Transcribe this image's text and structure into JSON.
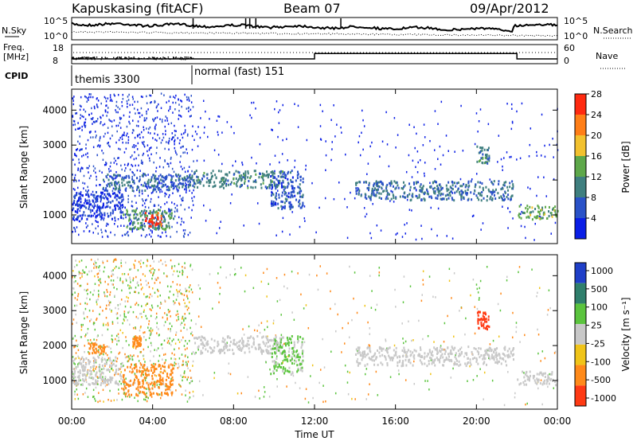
{
  "header": {
    "station": "Kapuskasing (fitACF)",
    "beam": "Beam 07",
    "date": "09/Apr/2012"
  },
  "summary_panels": {
    "nsky_label": "N.Sky",
    "nsearch_label": "N.Search",
    "freq_label_1": "Freq.",
    "freq_label_2": "[MHz]",
    "nave_label": "Nave",
    "cpid_label": "CPID",
    "noise_ticks": [
      "10^5",
      "10^0"
    ],
    "freq_ticks": [
      "18",
      "8"
    ],
    "nave_ticks": [
      "60",
      "0"
    ],
    "modes": [
      {
        "label": "themis 3300",
        "start_hour": 0.0,
        "end_hour": 6.0
      },
      {
        "label": "normal (fast) 151",
        "start_hour": 6.0,
        "end_hour": 24.0
      }
    ],
    "nave_steps": [
      {
        "start_hour": 0.0,
        "end_hour": 12.0,
        "value": 12
      },
      {
        "start_hour": 12.0,
        "end_hour": 22.0,
        "value": 32
      },
      {
        "start_hour": 22.0,
        "end_hour": 24.0,
        "value": 12
      }
    ]
  },
  "power_colorbar": {
    "label": "Power [dB]",
    "ticks": [
      "4",
      "8",
      "12",
      "16",
      "20",
      "24",
      "28"
    ],
    "colors": [
      "#0a1ee6",
      "#2a52c8",
      "#3f7f7f",
      "#5ea84a",
      "#f2c12e",
      "#ff7e17",
      "#ff2a10"
    ]
  },
  "velocity_colorbar": {
    "label": "Velocity [m s⁻¹]",
    "ticks": [
      "1000",
      "500",
      "100",
      "25",
      "-25",
      "-100",
      "-500",
      "-1000"
    ],
    "colors": [
      "#1f3fc8",
      "#2f7f6c",
      "#5bc43e",
      "#c8c8c8",
      "#f0c419",
      "#ff8a1a",
      "#ff3a14"
    ]
  },
  "chart_data": [
    {
      "type": "heatmap",
      "title": "",
      "xlabel": "",
      "ylabel": "Slant Range [km]",
      "xlim": [
        0,
        24
      ],
      "ylim": [
        180,
        4600
      ],
      "y_ticks": [
        1000,
        2000,
        3000,
        4000
      ],
      "quantity": "Power [dB]",
      "echo_regions": [
        {
          "t0": 0.0,
          "t1": 2.5,
          "r0": 900,
          "r1": 1700,
          "value": 6
        },
        {
          "t0": 1.5,
          "t1": 6.0,
          "r0": 1700,
          "r1": 2200,
          "value": 10
        },
        {
          "t0": 2.5,
          "t1": 5.0,
          "r0": 600,
          "r1": 1200,
          "value": 14
        },
        {
          "t0": 3.6,
          "t1": 4.4,
          "r0": 700,
          "r1": 1100,
          "value": 28
        },
        {
          "t0": 6.0,
          "t1": 10.5,
          "r0": 1800,
          "r1": 2300,
          "value": 12
        },
        {
          "t0": 9.8,
          "t1": 11.4,
          "r0": 1200,
          "r1": 2300,
          "value": 8
        },
        {
          "t0": 14.0,
          "t1": 21.8,
          "r0": 1450,
          "r1": 2000,
          "value": 10
        },
        {
          "t0": 20.0,
          "t1": 20.6,
          "r0": 2500,
          "r1": 3000,
          "value": 12
        },
        {
          "t0": 22.0,
          "t1": 24.0,
          "r0": 900,
          "r1": 1300,
          "value": 16
        }
      ]
    },
    {
      "type": "heatmap",
      "title": "",
      "xlabel": "Time UT",
      "ylabel": "Slant Range [km]",
      "xlim": [
        0,
        24
      ],
      "ylim": [
        180,
        4600
      ],
      "y_ticks": [
        1000,
        2000,
        3000,
        4000
      ],
      "x_ticks": [
        "00:00",
        "04:00",
        "08:00",
        "12:00",
        "16:00",
        "20:00",
        "00:00"
      ],
      "quantity": "Velocity [m s⁻¹]",
      "echo_regions": [
        {
          "t0": 0.0,
          "t1": 2.5,
          "r0": 900,
          "r1": 1700,
          "value": 0
        },
        {
          "t0": 0.8,
          "t1": 1.6,
          "r0": 1800,
          "r1": 2100,
          "value": -300
        },
        {
          "t0": 2.5,
          "t1": 5.0,
          "r0": 600,
          "r1": 1500,
          "value": -200
        },
        {
          "t0": 3.0,
          "t1": 3.4,
          "r0": 2000,
          "r1": 2300,
          "value": -400
        },
        {
          "t0": 6.0,
          "t1": 10.5,
          "r0": 1800,
          "r1": 2300,
          "value": 0
        },
        {
          "t0": 9.8,
          "t1": 11.4,
          "r0": 1200,
          "r1": 2300,
          "value": 80
        },
        {
          "t0": 14.0,
          "t1": 21.8,
          "r0": 1450,
          "r1": 2000,
          "value": 0
        },
        {
          "t0": 20.0,
          "t1": 20.6,
          "r0": 2500,
          "r1": 3000,
          "value": -800
        },
        {
          "t0": 22.0,
          "t1": 24.0,
          "r0": 900,
          "r1": 1300,
          "value": 0
        }
      ]
    }
  ]
}
